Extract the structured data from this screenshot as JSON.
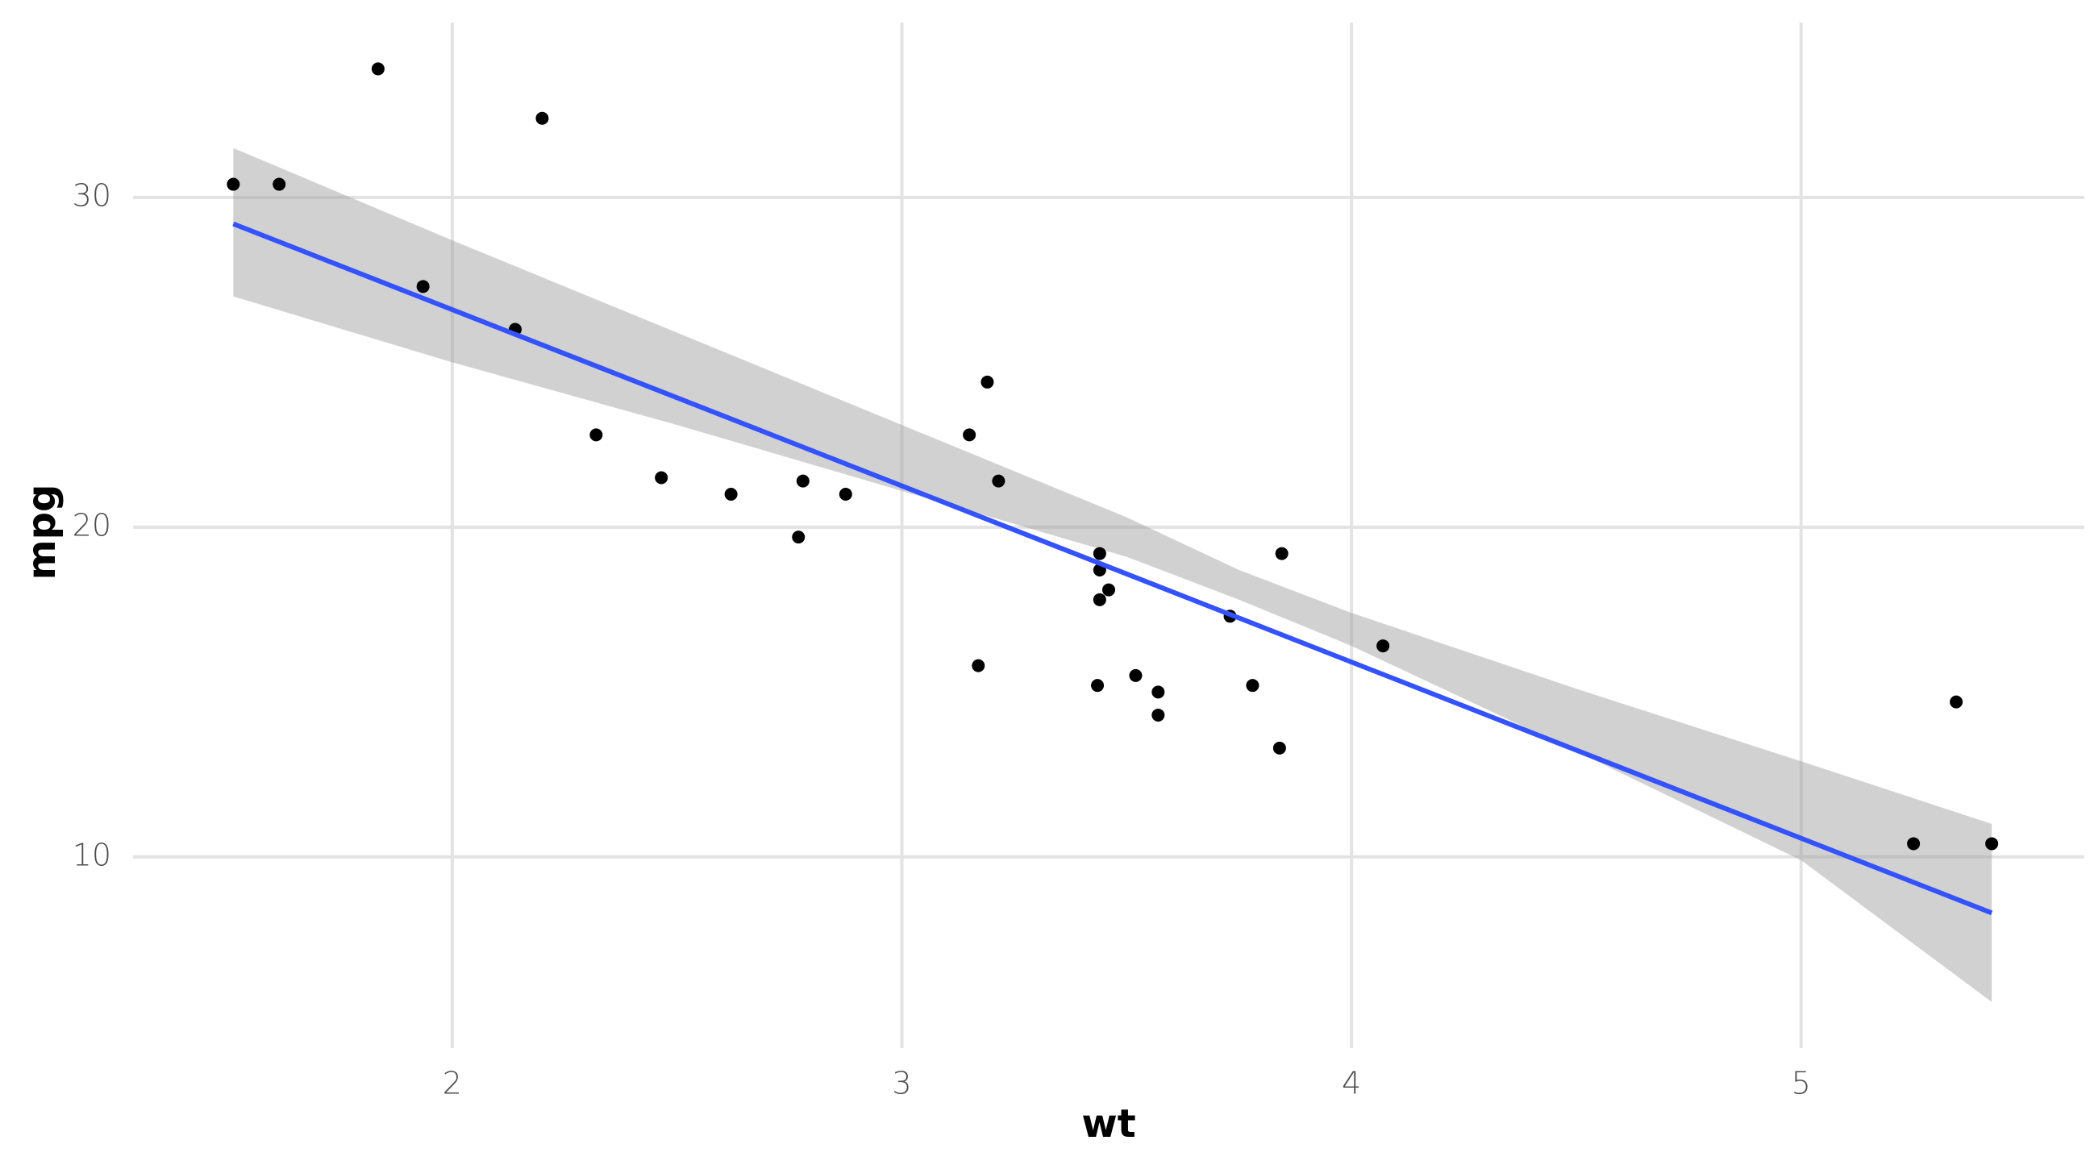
{
  "chart_data": {
    "type": "scatter",
    "title": "",
    "xlabel": "wt",
    "ylabel": "mpg",
    "xlim": [
      1.29,
      5.63
    ],
    "ylim": [
      4.2,
      35.5
    ],
    "x_ticks": [
      2,
      3,
      4,
      5
    ],
    "y_ticks": [
      10,
      20,
      30
    ],
    "x_tick_labels": [
      "2",
      "3",
      "4",
      "5"
    ],
    "y_tick_labels": [
      "10",
      "20",
      "30"
    ],
    "grid": true,
    "legend": "none",
    "points": [
      {
        "x": 1.513,
        "y": 30.4
      },
      {
        "x": 1.615,
        "y": 30.4
      },
      {
        "x": 1.835,
        "y": 33.9
      },
      {
        "x": 1.935,
        "y": 27.3
      },
      {
        "x": 2.14,
        "y": 26.0
      },
      {
        "x": 2.2,
        "y": 32.4
      },
      {
        "x": 2.32,
        "y": 22.8
      },
      {
        "x": 2.465,
        "y": 21.5
      },
      {
        "x": 2.62,
        "y": 21.0
      },
      {
        "x": 2.77,
        "y": 19.7
      },
      {
        "x": 2.78,
        "y": 21.4
      },
      {
        "x": 2.875,
        "y": 21.0
      },
      {
        "x": 3.15,
        "y": 22.8
      },
      {
        "x": 3.17,
        "y": 15.8
      },
      {
        "x": 3.19,
        "y": 24.4
      },
      {
        "x": 3.215,
        "y": 21.4
      },
      {
        "x": 3.435,
        "y": 15.2
      },
      {
        "x": 3.44,
        "y": 18.7
      },
      {
        "x": 3.44,
        "y": 19.2
      },
      {
        "x": 3.44,
        "y": 17.8
      },
      {
        "x": 3.46,
        "y": 18.1
      },
      {
        "x": 3.52,
        "y": 15.5
      },
      {
        "x": 3.57,
        "y": 14.3
      },
      {
        "x": 3.57,
        "y": 15.0
      },
      {
        "x": 3.73,
        "y": 17.3
      },
      {
        "x": 3.78,
        "y": 15.2
      },
      {
        "x": 3.84,
        "y": 13.3
      },
      {
        "x": 3.845,
        "y": 19.2
      },
      {
        "x": 4.07,
        "y": 16.4
      },
      {
        "x": 5.25,
        "y": 10.4
      },
      {
        "x": 5.345,
        "y": 14.7
      },
      {
        "x": 5.424,
        "y": 10.4
      }
    ],
    "fit": {
      "method": "lm",
      "x": [
        1.513,
        5.424
      ],
      "y": [
        29.2,
        8.3
      ]
    },
    "confidence_band": {
      "x": [
        1.513,
        2.0,
        2.5,
        3.0,
        3.25,
        3.5,
        3.75,
        4.0,
        4.5,
        5.0,
        5.424
      ],
      "upper": [
        31.5,
        28.7,
        25.9,
        23.1,
        21.7,
        20.3,
        18.7,
        17.4,
        15.1,
        12.9,
        11.0
      ],
      "lower": [
        27.0,
        25.0,
        23.1,
        21.1,
        20.1,
        19.1,
        17.8,
        16.4,
        13.2,
        9.9,
        5.6
      ]
    },
    "colors": {
      "points": "#000000",
      "fit_line": "#3452ff",
      "band": "#999999",
      "grid": "#e3e3e3",
      "tick_text": "#4d4d4d"
    }
  }
}
